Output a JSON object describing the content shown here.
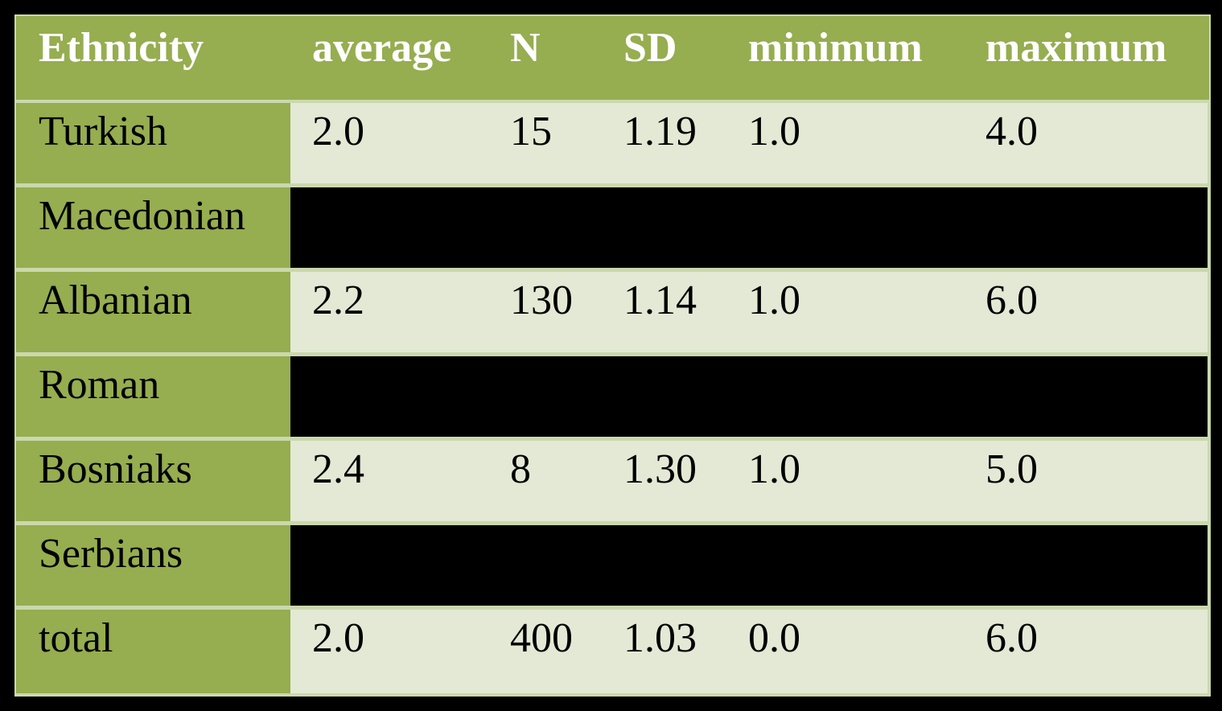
{
  "table": {
    "header": [
      "Ethnicity",
      "average",
      "N",
      "SD",
      "minimum",
      "maximum"
    ],
    "rows": [
      [
        "Turkish",
        "2.0",
        "15",
        "1.19",
        "1.0",
        "4.0"
      ],
      [
        "Macedonian"
      ],
      [
        "Albanian",
        "2.2",
        "130",
        "1.14",
        "1.0",
        "6.0"
      ],
      [
        "Roman"
      ],
      [
        "Bosniaks",
        "2.4",
        "8",
        "1.30",
        "1.0",
        "5.0"
      ],
      [
        "Serbians"
      ],
      [
        "total",
        "2.0",
        "400",
        "1.03",
        "0.0",
        "6.0"
      ]
    ]
  }
}
